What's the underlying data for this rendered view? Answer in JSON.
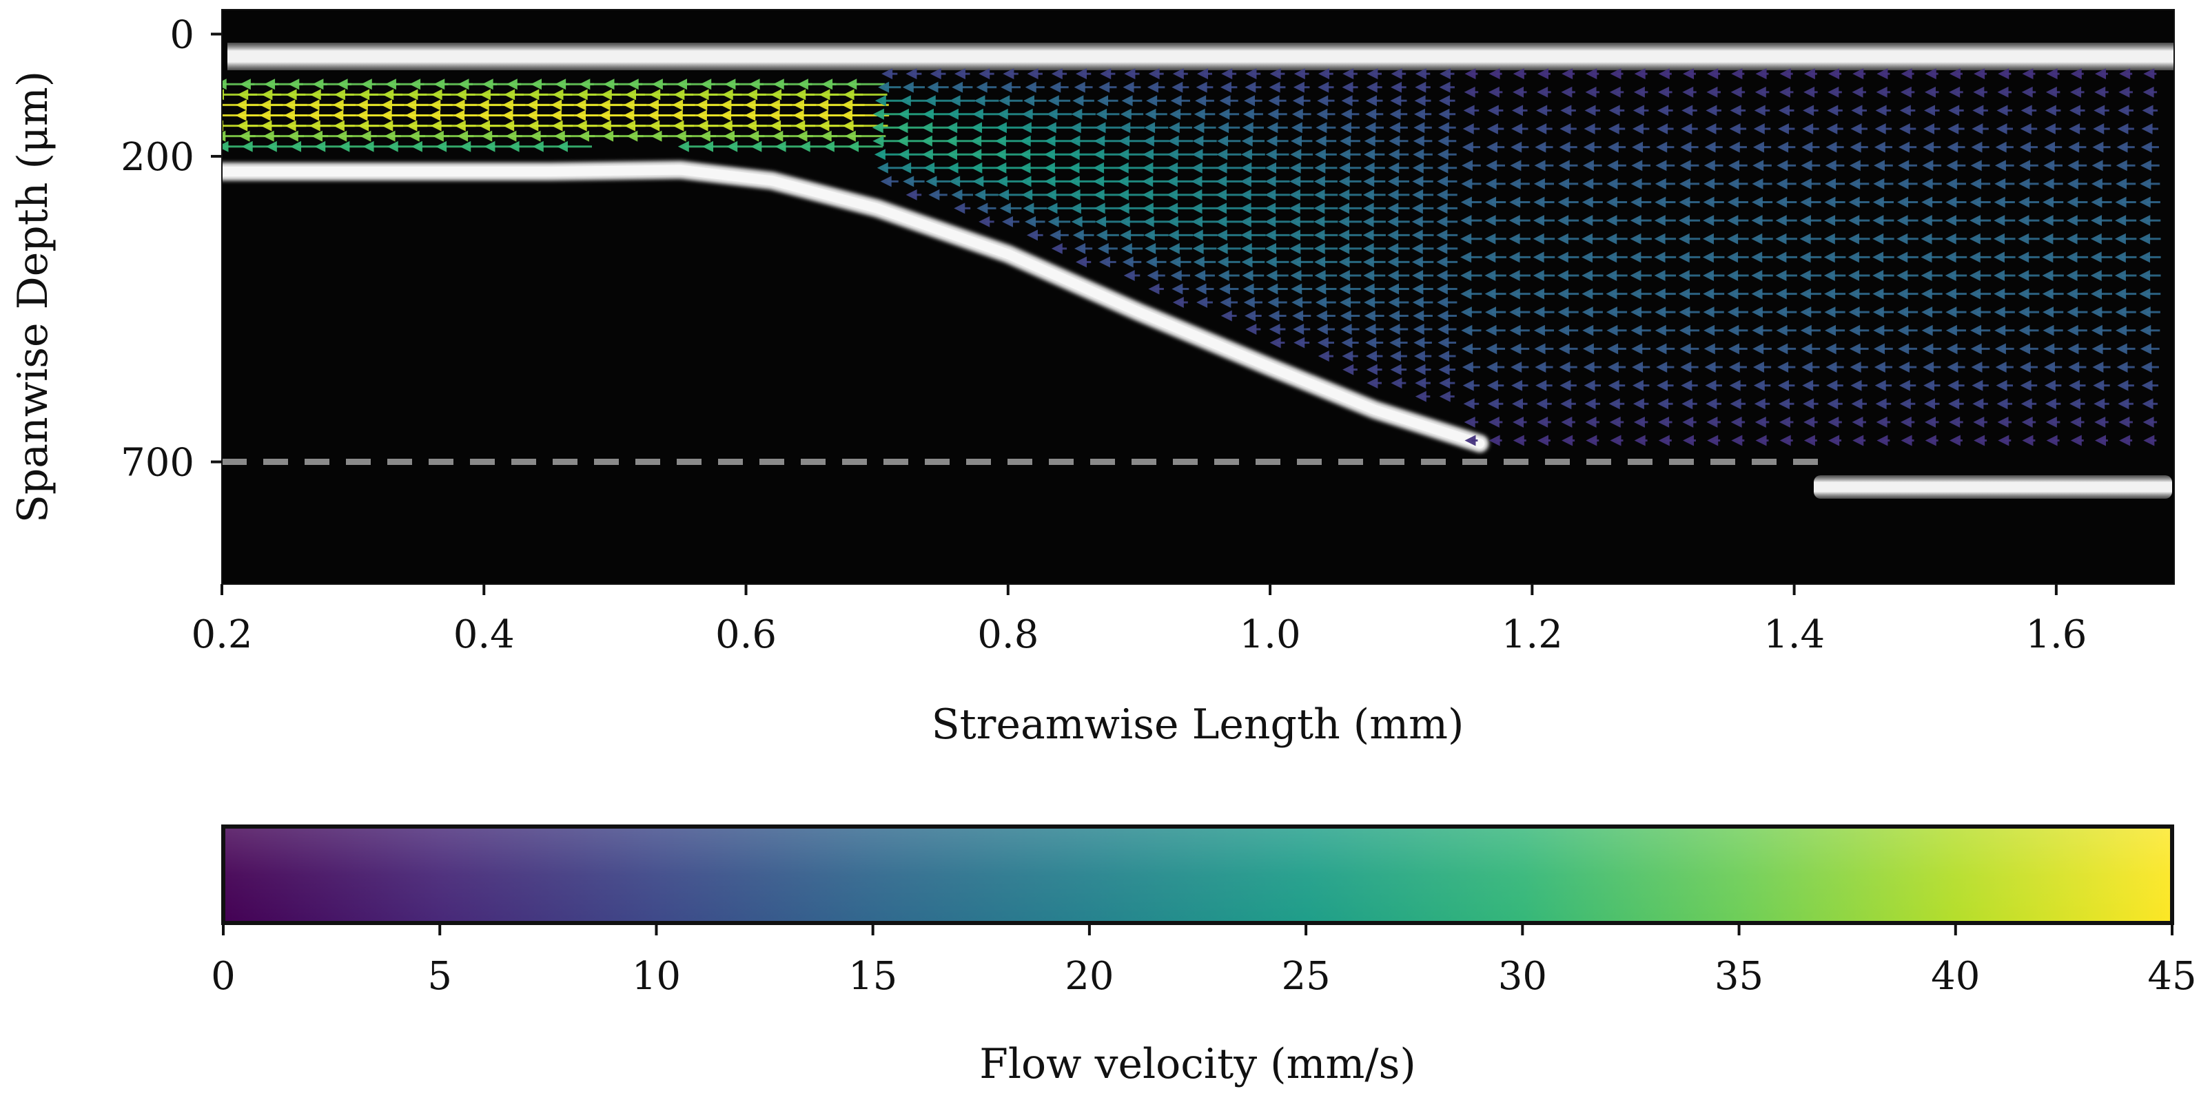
{
  "chart_data": [
    {
      "type": "heatmap",
      "subtype": "quiver-over-grayscale-image",
      "xlabel": "Streamwise Length (mm)",
      "ylabel": "Spanwise Depth (μm)",
      "xlim": [
        0.2,
        1.69
      ],
      "ylim": [
        900,
        -40
      ],
      "x_ticks": [
        0.2,
        0.4,
        0.6,
        0.8,
        1.0,
        1.2,
        1.4,
        1.6
      ],
      "x_tick_labels": [
        "0.2",
        "0.4",
        "0.6",
        "0.8",
        "1.0",
        "1.2",
        "1.4",
        "1.6"
      ],
      "y_ticks": [
        0,
        200,
        700
      ],
      "y_tick_labels": [
        "0",
        "200",
        "700"
      ],
      "reference_line": {
        "y": 700,
        "style": "dashed",
        "color": "#8a8a8a"
      },
      "walls": {
        "top_wall_depth": 10,
        "lower_wall_profile": {
          "x": [
            0.2,
            0.45,
            0.55,
            0.62,
            0.7,
            0.8,
            0.9,
            1.0,
            1.08,
            1.16
          ],
          "y": [
            225,
            225,
            222,
            240,
            285,
            360,
            455,
            545,
            615,
            670
          ]
        },
        "bottom_wall": {
          "x_start": 1.42,
          "x_end": 1.69,
          "depth": 705
        }
      },
      "flow_field": {
        "direction": "negative-x",
        "narrow_channel": {
          "x_range": [
            0.2,
            0.7
          ],
          "depth_range": [
            75,
            175
          ],
          "velocity_range": [
            30,
            44
          ]
        },
        "transition": {
          "x_range": [
            0.7,
            1.15
          ],
          "velocity_range": [
            15,
            30
          ]
        },
        "wide_channel": {
          "x_range": [
            1.15,
            1.69
          ],
          "depth_range": [
            60,
            670
          ],
          "velocity_range": [
            6,
            16
          ]
        }
      }
    },
    {
      "type": "colorbar",
      "colormap": "viridis",
      "label": "Flow velocity (mm/s)",
      "range": [
        0,
        45
      ],
      "ticks": [
        0,
        5,
        10,
        15,
        20,
        25,
        30,
        35,
        40,
        45
      ],
      "tick_labels": [
        "0",
        "5",
        "10",
        "15",
        "20",
        "25",
        "30",
        "35",
        "40",
        "45"
      ]
    }
  ],
  "colors": {
    "background": "#050505",
    "wall": "#e8e8e8",
    "dashed_line": "#8a8a8a",
    "viridis": [
      "#440154",
      "#482878",
      "#3e4989",
      "#31688e",
      "#26828e",
      "#1f9e89",
      "#35b779",
      "#6ece58",
      "#b5de2b",
      "#fde725"
    ]
  }
}
